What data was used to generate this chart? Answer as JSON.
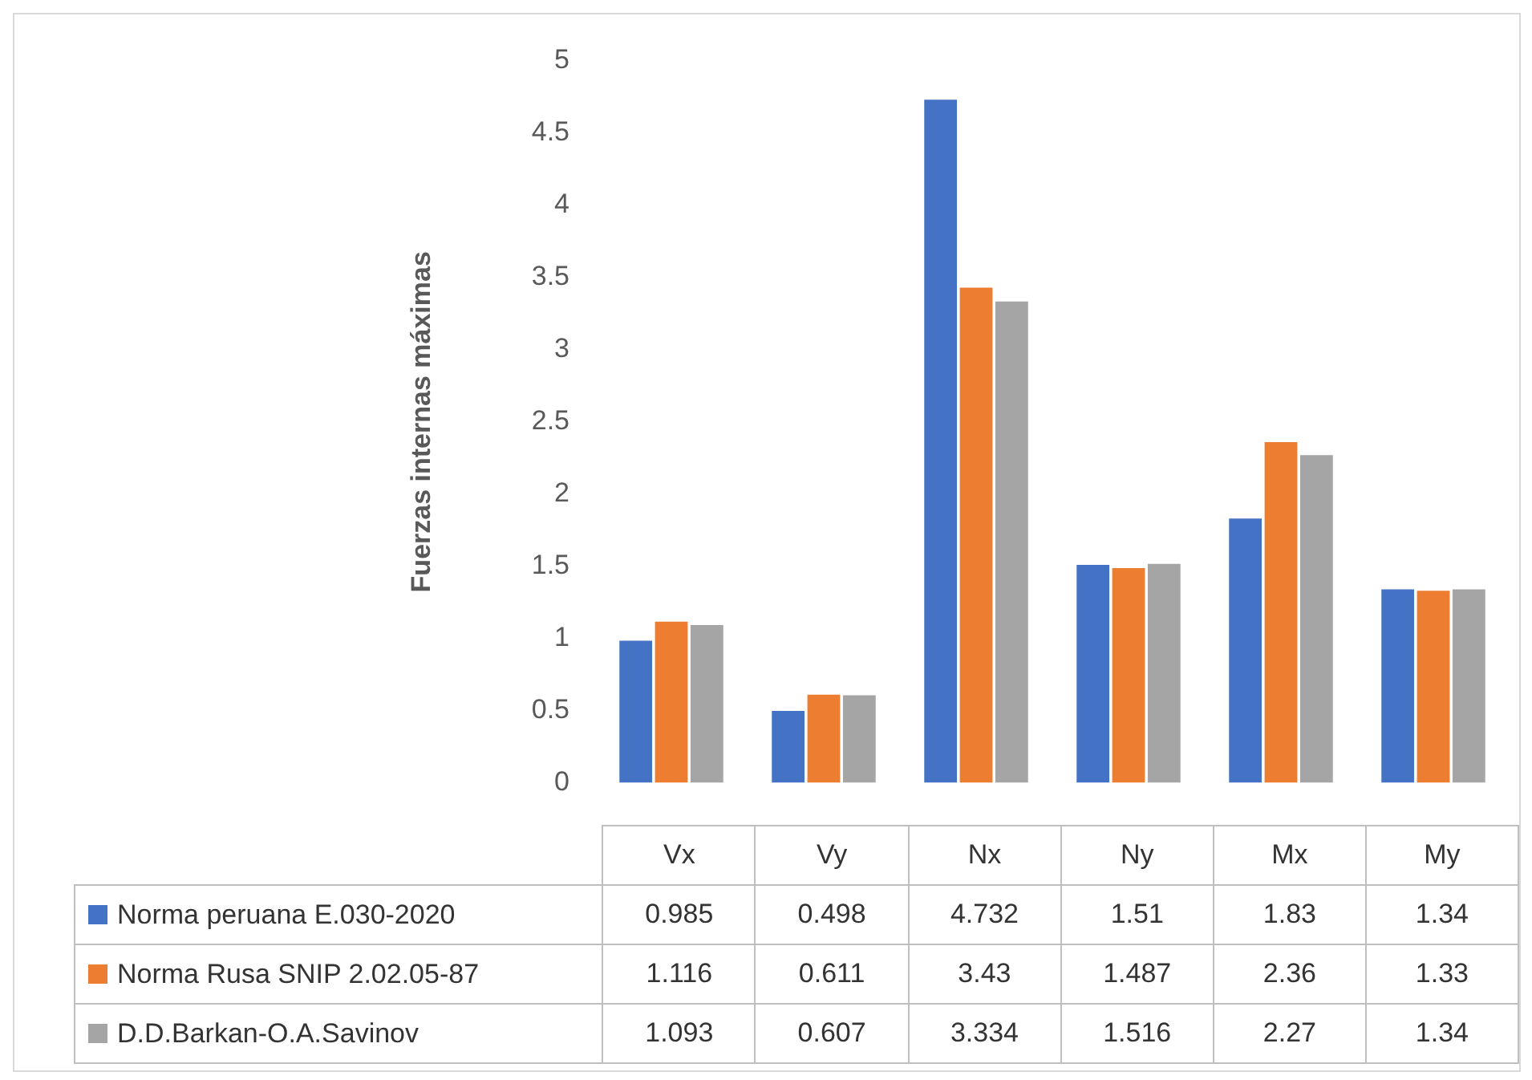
{
  "chart_data": {
    "type": "bar",
    "ylabel": "Fuerzas internas máximas",
    "categories": [
      "Vx",
      "Vy",
      "Nx",
      "Ny",
      "Mx",
      "My"
    ],
    "series": [
      {
        "name": "Norma peruana E.030-2020",
        "color": "#4472c4",
        "values": [
          0.985,
          0.498,
          4.732,
          1.51,
          1.83,
          1.34
        ]
      },
      {
        "name": "Norma Rusa SNIP 2.02.05-87",
        "color": "#ed7d31",
        "values": [
          1.116,
          0.611,
          3.43,
          1.487,
          2.36,
          1.33
        ]
      },
      {
        "name": "D.D.Barkan-O.A.Savinov",
        "color": "#a5a5a5",
        "values": [
          1.093,
          0.607,
          3.334,
          1.516,
          2.27,
          1.34
        ]
      }
    ],
    "ylim": [
      0,
      5
    ],
    "yticks": [
      0,
      0.5,
      1,
      1.5,
      2,
      2.5,
      3,
      3.5,
      4,
      4.5,
      5
    ],
    "grid": false,
    "legend": "bottom",
    "data_labels": true
  }
}
